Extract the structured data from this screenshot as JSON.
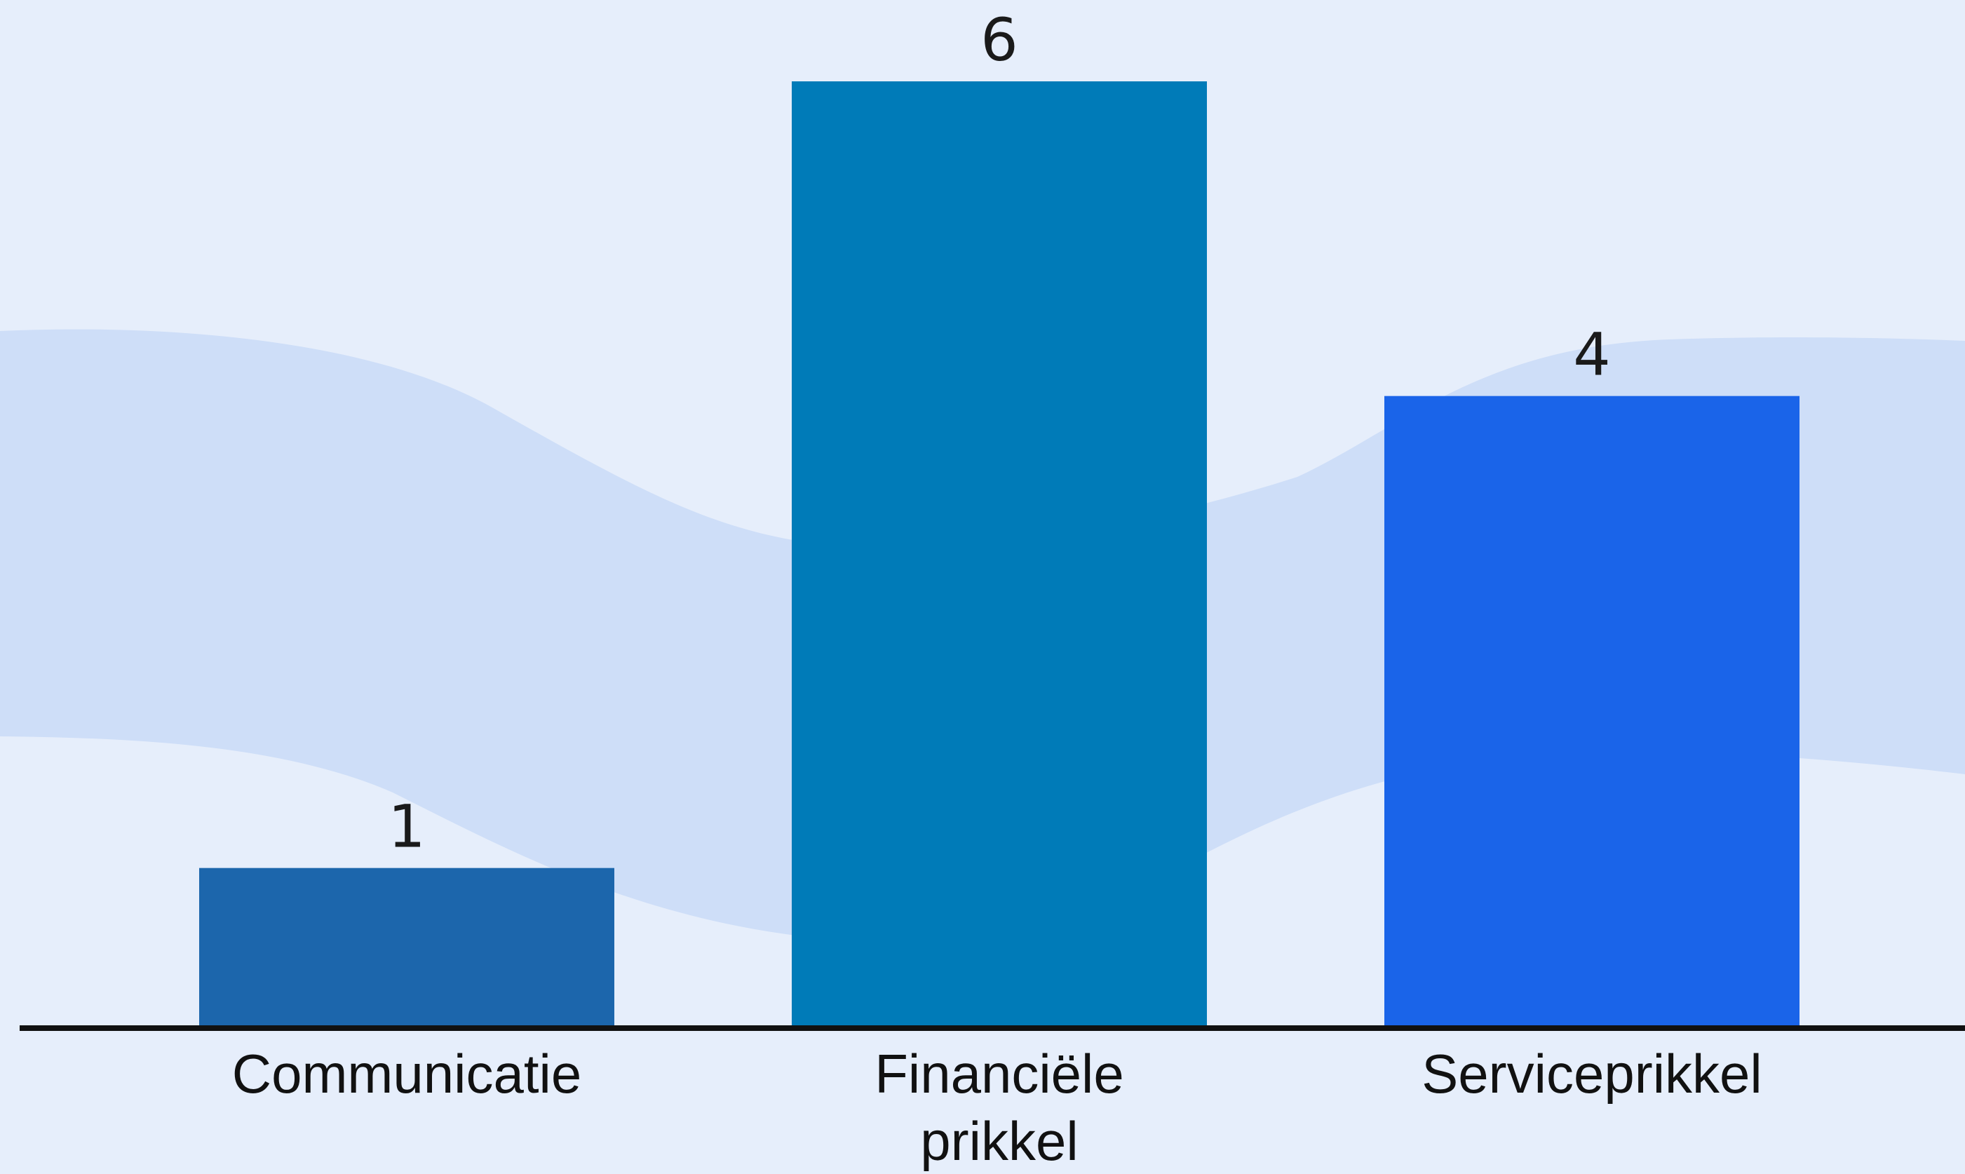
{
  "chart_data": {
    "type": "bar",
    "categories": [
      "Communicatie",
      "Financiële prikkel",
      "Serviceprikkel"
    ],
    "category_lines": [
      [
        "Communicatie"
      ],
      [
        "Financiële",
        "prikkel"
      ],
      [
        "Serviceprikkel"
      ]
    ],
    "values": [
      1,
      6,
      4
    ],
    "data_labels": [
      "1",
      "6",
      "4"
    ],
    "colors": [
      "#1c66ac",
      "#007bb8",
      "#1a64e9"
    ],
    "title": "",
    "xlabel": "",
    "ylabel": "",
    "ylim": [
      0,
      6
    ],
    "grid": false,
    "legend": "none"
  },
  "colors": {
    "background": "#e6eefb",
    "wave": "#cedef8",
    "axis": "#111111"
  }
}
